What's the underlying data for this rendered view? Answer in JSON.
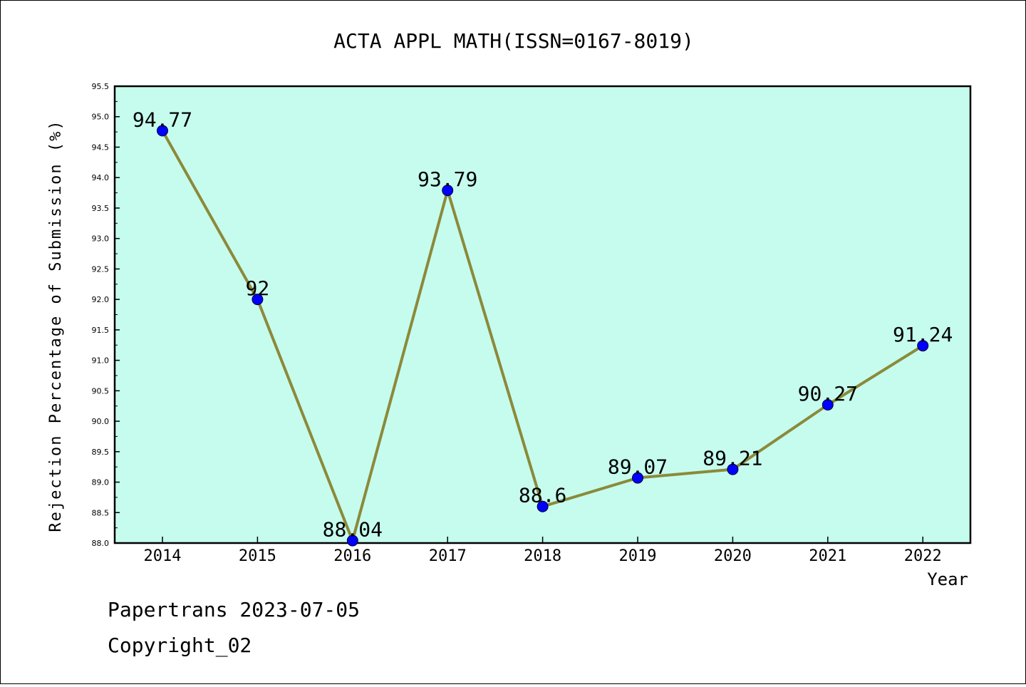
{
  "chart_data": {
    "type": "line",
    "title": "ACTA APPL MATH(ISSN=0167-8019)",
    "xlabel": "Year",
    "ylabel": "Rejection Percentage of Submission (%)",
    "categories": [
      "2014",
      "2015",
      "2016",
      "2017",
      "2018",
      "2019",
      "2020",
      "2021",
      "2022"
    ],
    "values": [
      94.77,
      92,
      88.04,
      93.79,
      88.6,
      89.07,
      89.21,
      90.27,
      91.24
    ],
    "data_labels": [
      "94.77",
      "92",
      "88.04",
      "93.79",
      "88.6",
      "89.07",
      "89.21",
      "90.27",
      "91.24"
    ],
    "ylim": [
      88.0,
      95.5
    ],
    "yticks": [
      "88.0",
      "88.5",
      "89.0",
      "89.5",
      "90.0",
      "90.5",
      "91.0",
      "91.5",
      "92.0",
      "92.5",
      "93.0",
      "93.5",
      "94.0",
      "94.5",
      "95.0",
      "95.5"
    ],
    "grid": false,
    "colors": {
      "plot_background": "#c6fcee",
      "line": "#8b8a3a",
      "marker": "#0000ff"
    }
  },
  "footer": {
    "line1": "Papertrans 2023-07-05",
    "line2": "Copyright_02"
  }
}
